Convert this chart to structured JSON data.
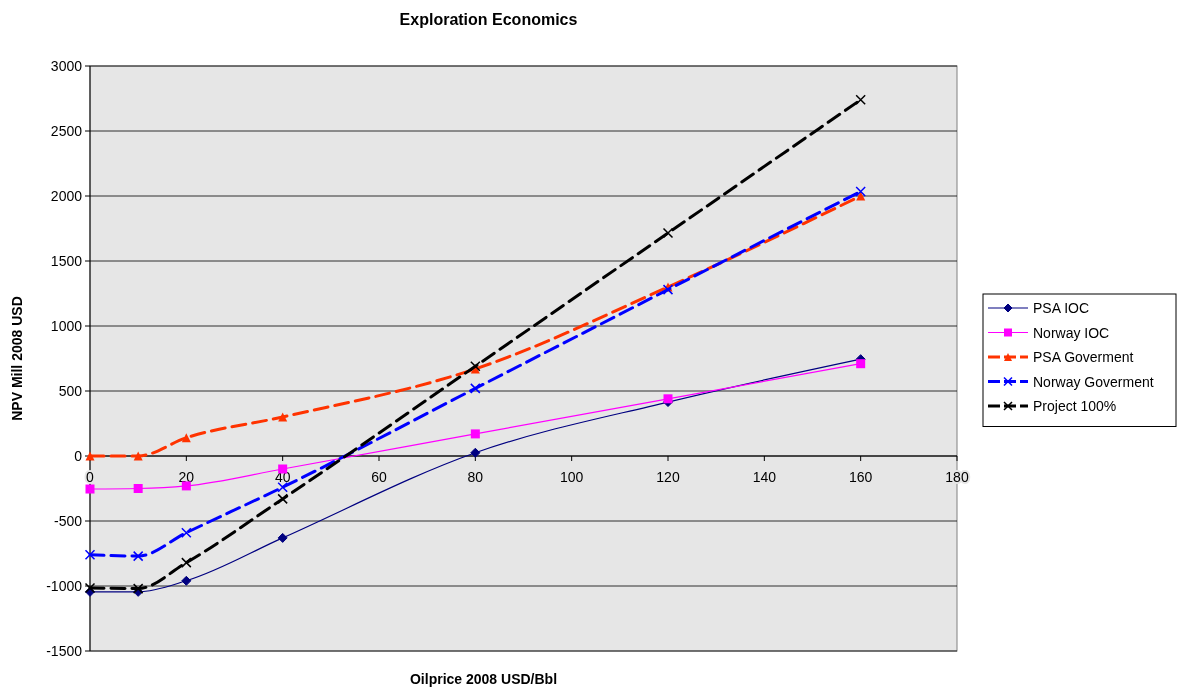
{
  "chart_data": {
    "type": "line",
    "title": "Exploration Economics",
    "xlabel": "Oilprice 2008 USD/Bbl",
    "ylabel": "NPV Mill 2008 USD",
    "x": [
      0,
      10,
      20,
      40,
      80,
      120,
      160
    ],
    "xlim": [
      0,
      180
    ],
    "xticks": [
      0,
      20,
      40,
      60,
      80,
      100,
      120,
      140,
      160,
      180
    ],
    "ylim": [
      -1500,
      3000
    ],
    "yticks": [
      -1500,
      -1000,
      -500,
      0,
      500,
      1000,
      1500,
      2000,
      2500,
      3000
    ],
    "grid": "y",
    "legend": "right",
    "series": [
      {
        "name": "PSA IOC",
        "color": "#000080",
        "marker": "diamond",
        "line_style": "solid",
        "values": [
          -1045,
          -1045,
          -960,
          -630,
          25,
          415,
          745
        ]
      },
      {
        "name": "Norway IOC",
        "color": "#ff00ff",
        "marker": "square",
        "line_style": "solid",
        "values": [
          -254,
          -250,
          -230,
          -100,
          170,
          440,
          710
        ]
      },
      {
        "name": "PSA Goverment",
        "color": "#ff3300",
        "marker": "triangle",
        "line_style": "dashed",
        "values": [
          0,
          0,
          140,
          300,
          670,
          1300,
          2000
        ]
      },
      {
        "name": "Norway Goverment",
        "color": "#0000ff",
        "marker": "cross",
        "line_style": "dashed",
        "values": [
          -760,
          -770,
          -590,
          -240,
          520,
          1280,
          2035
        ]
      },
      {
        "name": "Project 100%",
        "color": "#000000",
        "marker": "cross",
        "line_style": "dashed",
        "values": [
          -1015,
          -1020,
          -820,
          -330,
          690,
          1715,
          2740
        ]
      }
    ]
  }
}
